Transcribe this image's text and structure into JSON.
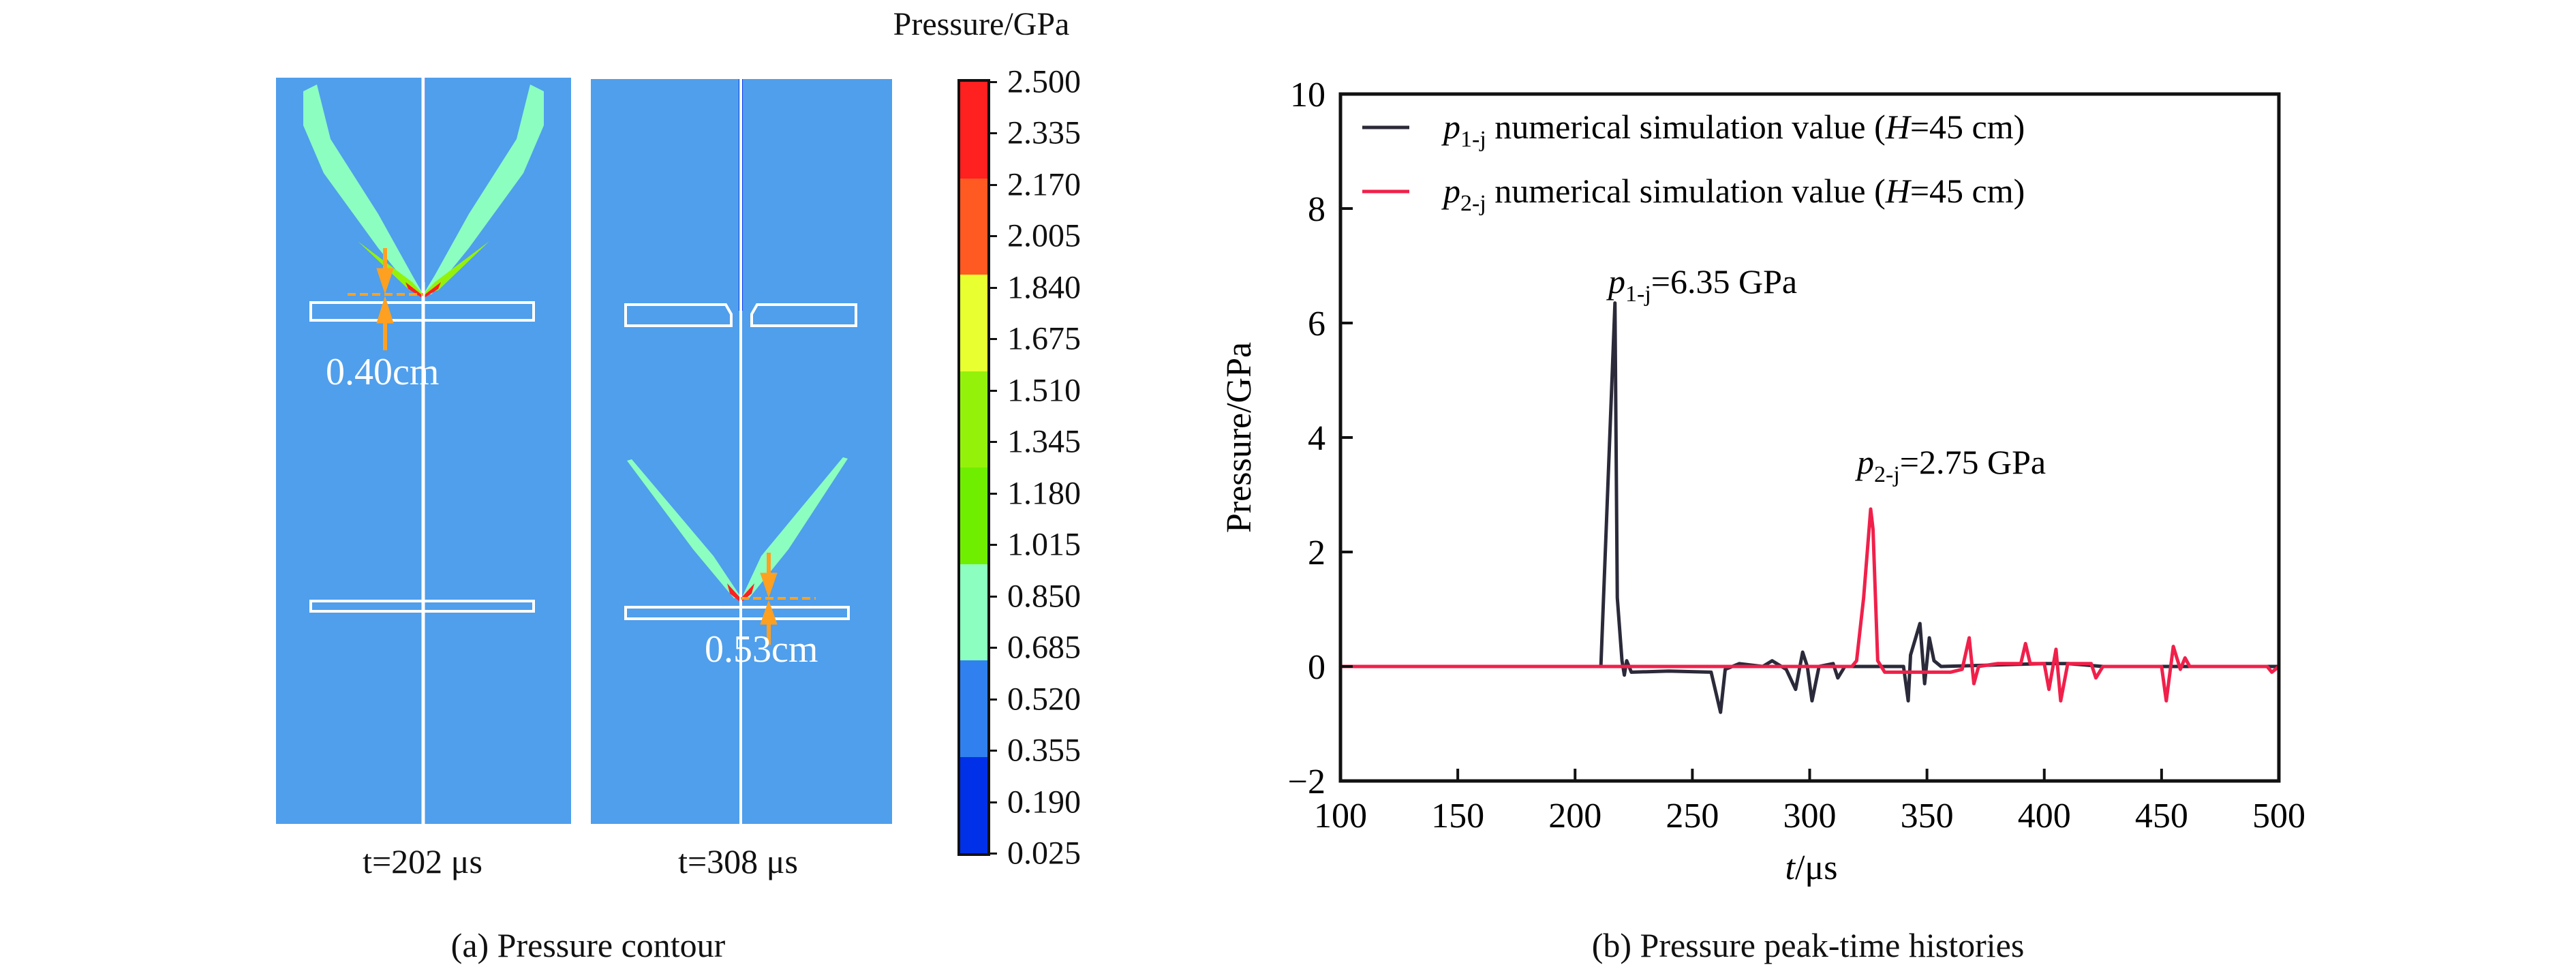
{
  "panel_a": {
    "caption": "(a) Pressure contour",
    "frames": [
      {
        "label": "t=202 μs",
        "measure": "0.40cm"
      },
      {
        "label": "t=308 μs",
        "measure": "0.53cm"
      }
    ],
    "colorbar": {
      "title": "Pressure/GPa",
      "ticks": [
        "2.500",
        "2.335",
        "2.170",
        "2.005",
        "1.840",
        "1.675",
        "1.510",
        "1.345",
        "1.180",
        "1.015",
        "0.850",
        "0.685",
        "0.520",
        "0.355",
        "0.190",
        "0.025"
      ],
      "colors": [
        "#ff2020",
        "#ff5a22",
        "#e8ff30",
        "#94f20a",
        "#70ee00",
        "#8cffc0",
        "#3080f0",
        "#0030e8"
      ]
    },
    "background_color": "#4f9fec"
  },
  "panel_b": {
    "caption": "(b) Pressure peak-time histories"
  },
  "chart_data": {
    "type": "line",
    "xlabel": "t/μs",
    "ylabel": "Pressure/GPa",
    "xlim": [
      100,
      500
    ],
    "ylim": [
      -2,
      10
    ],
    "xticks": [
      100,
      150,
      200,
      250,
      300,
      350,
      400,
      450,
      500
    ],
    "yticks": [
      -2,
      0,
      2,
      4,
      6,
      8,
      10
    ],
    "grid": false,
    "legend_placement": "top-left",
    "series": [
      {
        "name": "p1-j numerical simulation value (H=45 cm)",
        "color": "#2a2a3a",
        "points": [
          [
            100,
            0
          ],
          [
            211,
            0
          ],
          [
            217,
            6.35
          ],
          [
            218,
            1.2
          ],
          [
            220,
            0.1
          ],
          [
            221,
            -0.15
          ],
          [
            222,
            0.1
          ],
          [
            224,
            -0.1
          ],
          [
            240,
            -0.08
          ],
          [
            258,
            -0.1
          ],
          [
            262,
            -0.8
          ],
          [
            264,
            -0.05
          ],
          [
            270,
            0.05
          ],
          [
            280,
            0
          ],
          [
            284,
            0.1
          ],
          [
            290,
            -0.05
          ],
          [
            294,
            -0.4
          ],
          [
            297,
            0.25
          ],
          [
            299,
            0
          ],
          [
            301,
            -0.6
          ],
          [
            304,
            0
          ],
          [
            310,
            0.05
          ],
          [
            312,
            -0.2
          ],
          [
            315,
            0
          ],
          [
            340,
            0
          ],
          [
            342,
            -0.6
          ],
          [
            343,
            0.2
          ],
          [
            347,
            0.75
          ],
          [
            349,
            -0.3
          ],
          [
            351,
            0.5
          ],
          [
            353,
            0.1
          ],
          [
            356,
            0
          ],
          [
            400,
            0.05
          ],
          [
            410,
            0.05
          ],
          [
            425,
            0
          ],
          [
            500,
            0
          ]
        ]
      },
      {
        "name": "p2-j numerical simulation value (H=45 cm)",
        "color": "#f0204a",
        "points": [
          [
            100,
            0
          ],
          [
            318,
            0
          ],
          [
            320,
            0.1
          ],
          [
            323,
            1.2
          ],
          [
            326,
            2.75
          ],
          [
            327,
            2.4
          ],
          [
            329,
            0.1
          ],
          [
            332,
            -0.1
          ],
          [
            335,
            -0.1
          ],
          [
            360,
            -0.1
          ],
          [
            365,
            -0.05
          ],
          [
            368,
            0.5
          ],
          [
            370,
            -0.3
          ],
          [
            372,
            0
          ],
          [
            380,
            0.05
          ],
          [
            390,
            0.05
          ],
          [
            392,
            0.4
          ],
          [
            394,
            0.05
          ],
          [
            400,
            0.05
          ],
          [
            402,
            -0.4
          ],
          [
            405,
            0.3
          ],
          [
            407,
            -0.6
          ],
          [
            410,
            0.05
          ],
          [
            420,
            0.05
          ],
          [
            422,
            -0.2
          ],
          [
            425,
            0
          ],
          [
            450,
            0
          ],
          [
            452,
            -0.6
          ],
          [
            455,
            0.35
          ],
          [
            458,
            -0.05
          ],
          [
            460,
            0.15
          ],
          [
            462,
            0
          ],
          [
            495,
            0
          ],
          [
            497,
            -0.1
          ],
          [
            500,
            0
          ]
        ]
      }
    ],
    "legend": [
      {
        "sym": "p",
        "sub": "1-j",
        "text": " numerical simulation value (",
        "var": "H",
        "rest": "=45 cm)"
      },
      {
        "sym": "p",
        "sub": "2-j",
        "text": " numerical simulation value (",
        "var": "H",
        "rest": "=45 cm)"
      }
    ],
    "annotations": [
      {
        "sym": "p",
        "sub": "1-j",
        "text": "=6.35 GPa",
        "x": 217,
        "y": 6.35
      },
      {
        "sym": "p",
        "sub": "2-j",
        "text": "=2.75 GPa",
        "x": 326,
        "y": 2.75
      }
    ]
  }
}
